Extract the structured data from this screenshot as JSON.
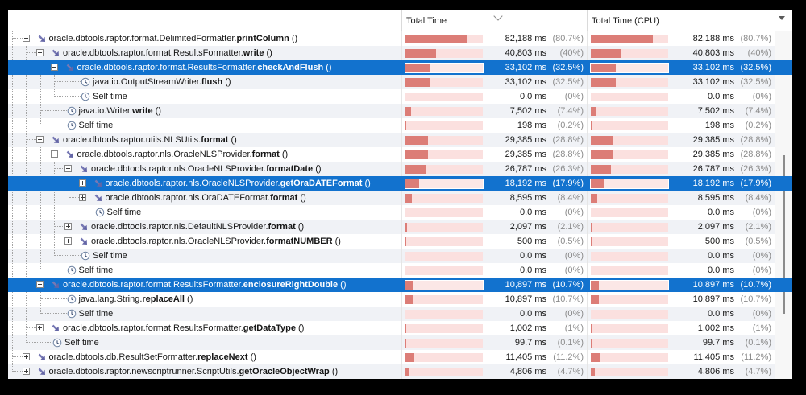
{
  "header": {
    "tree_column_label": "",
    "total_time_label": "Total Time",
    "total_time_cpu_label": "Total Time (CPU)",
    "sort_column": "Total Time",
    "sort_direction": "descending"
  },
  "colors": {
    "selection_blue": "#1272ce",
    "bar_fill": "#dc7d77",
    "bar_track": "#fbe0df",
    "alt_row": "#f0f2f6"
  },
  "rows": [
    {
      "prefix": "oracle.dbtools.raptor.format.DelimitedFormatter.",
      "method": "printColumn",
      "suffix": " ()",
      "level": 1,
      "node": "expanded",
      "icon": "method-call",
      "selected": false,
      "total": {
        "time": "82,188 ms",
        "pct": "(80.7%)",
        "value": 80.7
      },
      "cpu": {
        "time": "82,188 ms",
        "pct": "(80.7%)",
        "value": 80.7
      }
    },
    {
      "prefix": "oracle.dbtools.raptor.format.ResultsFormatter.",
      "method": "write",
      "suffix": " ()",
      "level": 2,
      "node": "expanded",
      "icon": "method-call",
      "selected": false,
      "total": {
        "time": "40,803 ms",
        "pct": "(40%)",
        "value": 40
      },
      "cpu": {
        "time": "40,803 ms",
        "pct": "(40%)",
        "value": 40
      }
    },
    {
      "prefix": "oracle.dbtools.raptor.format.ResultsFormatter.",
      "method": "checkAndFlush",
      "suffix": " ()",
      "level": 3,
      "node": "expanded",
      "icon": "method-call",
      "selected": true,
      "total": {
        "time": "33,102 ms",
        "pct": "(32.5%)",
        "value": 32.5
      },
      "cpu": {
        "time": "33,102 ms",
        "pct": "(32.5%)",
        "value": 32.5
      }
    },
    {
      "prefix": "java.io.OutputStreamWriter.",
      "method": "flush",
      "suffix": " ()",
      "level": 4,
      "node": "leaf",
      "icon": "clock",
      "selected": false,
      "total": {
        "time": "33,102 ms",
        "pct": "(32.5%)",
        "value": 32.5
      },
      "cpu": {
        "time": "33,102 ms",
        "pct": "(32.5%)",
        "value": 32.5
      }
    },
    {
      "prefix": "Self time",
      "method": "",
      "suffix": "",
      "level": 4,
      "node": "leaf",
      "icon": "clock",
      "selected": false,
      "total": {
        "time": "0.0 ms",
        "pct": "(0%)",
        "value": 0
      },
      "cpu": {
        "time": "0.0 ms",
        "pct": "(0%)",
        "value": 0
      }
    },
    {
      "prefix": "java.io.Writer.",
      "method": "write",
      "suffix": " ()",
      "level": 3,
      "node": "leaf",
      "icon": "clock",
      "selected": false,
      "total": {
        "time": "7,502 ms",
        "pct": "(7.4%)",
        "value": 7.4
      },
      "cpu": {
        "time": "7,502 ms",
        "pct": "(7.4%)",
        "value": 7.4
      }
    },
    {
      "prefix": "Self time",
      "method": "",
      "suffix": "",
      "level": 3,
      "node": "leaf",
      "icon": "clock",
      "selected": false,
      "total": {
        "time": "198 ms",
        "pct": "(0.2%)",
        "value": 0.2
      },
      "cpu": {
        "time": "198 ms",
        "pct": "(0.2%)",
        "value": 0.2
      }
    },
    {
      "prefix": "oracle.dbtools.raptor.utils.NLSUtils.",
      "method": "format",
      "suffix": " ()",
      "level": 2,
      "node": "expanded",
      "icon": "method-call",
      "selected": false,
      "total": {
        "time": "29,385 ms",
        "pct": "(28.8%)",
        "value": 28.8
      },
      "cpu": {
        "time": "29,385 ms",
        "pct": "(28.8%)",
        "value": 28.8
      }
    },
    {
      "prefix": "oracle.dbtools.raptor.nls.OracleNLSProvider.",
      "method": "format",
      "suffix": " ()",
      "level": 3,
      "node": "expanded",
      "icon": "method-call",
      "selected": false,
      "total": {
        "time": "29,385 ms",
        "pct": "(28.8%)",
        "value": 28.8
      },
      "cpu": {
        "time": "29,385 ms",
        "pct": "(28.8%)",
        "value": 28.8
      }
    },
    {
      "prefix": "oracle.dbtools.raptor.nls.OracleNLSProvider.",
      "method": "formatDate",
      "suffix": " ()",
      "level": 4,
      "node": "expanded",
      "icon": "method-call",
      "selected": false,
      "total": {
        "time": "26,787 ms",
        "pct": "(26.3%)",
        "value": 26.3
      },
      "cpu": {
        "time": "26,787 ms",
        "pct": "(26.3%)",
        "value": 26.3
      }
    },
    {
      "prefix": "oracle.dbtools.raptor.nls.OracleNLSProvider.",
      "method": "getOraDATEFormat",
      "suffix": " ()",
      "level": 5,
      "node": "collapsed",
      "icon": "method-call",
      "selected": true,
      "total": {
        "time": "18,192 ms",
        "pct": "(17.9%)",
        "value": 17.9
      },
      "cpu": {
        "time": "18,192 ms",
        "pct": "(17.9%)",
        "value": 17.9
      }
    },
    {
      "prefix": "oracle.dbtools.raptor.nls.OraDATEFormat.",
      "method": "format",
      "suffix": " ()",
      "level": 5,
      "node": "collapsed",
      "icon": "method-call",
      "selected": false,
      "total": {
        "time": "8,595 ms",
        "pct": "(8.4%)",
        "value": 8.4
      },
      "cpu": {
        "time": "8,595 ms",
        "pct": "(8.4%)",
        "value": 8.4
      }
    },
    {
      "prefix": "Self time",
      "method": "",
      "suffix": "",
      "level": 5,
      "node": "leaf",
      "icon": "clock",
      "selected": false,
      "total": {
        "time": "0.0 ms",
        "pct": "(0%)",
        "value": 0
      },
      "cpu": {
        "time": "0.0 ms",
        "pct": "(0%)",
        "value": 0
      }
    },
    {
      "prefix": "oracle.dbtools.raptor.nls.DefaultNLSProvider.",
      "method": "format",
      "suffix": " ()",
      "level": 4,
      "node": "collapsed",
      "icon": "method-call",
      "selected": false,
      "total": {
        "time": "2,097 ms",
        "pct": "(2.1%)",
        "value": 2.1
      },
      "cpu": {
        "time": "2,097 ms",
        "pct": "(2.1%)",
        "value": 2.1
      }
    },
    {
      "prefix": "oracle.dbtools.raptor.nls.OracleNLSProvider.",
      "method": "formatNUMBER",
      "suffix": " ()",
      "level": 4,
      "node": "collapsed",
      "icon": "method-call",
      "selected": false,
      "total": {
        "time": "500 ms",
        "pct": "(0.5%)",
        "value": 0.5
      },
      "cpu": {
        "time": "500 ms",
        "pct": "(0.5%)",
        "value": 0.5
      }
    },
    {
      "prefix": "Self time",
      "method": "",
      "suffix": "",
      "level": 4,
      "node": "leaf",
      "icon": "clock",
      "selected": false,
      "total": {
        "time": "0.0 ms",
        "pct": "(0%)",
        "value": 0
      },
      "cpu": {
        "time": "0.0 ms",
        "pct": "(0%)",
        "value": 0
      }
    },
    {
      "prefix": "Self time",
      "method": "",
      "suffix": "",
      "level": 3,
      "node": "leaf",
      "icon": "clock",
      "selected": false,
      "total": {
        "time": "0.0 ms",
        "pct": "(0%)",
        "value": 0
      },
      "cpu": {
        "time": "0.0 ms",
        "pct": "(0%)",
        "value": 0
      }
    },
    {
      "prefix": "oracle.dbtools.raptor.format.ResultsFormatter.",
      "method": "enclosureRightDouble",
      "suffix": " ()",
      "level": 2,
      "node": "expanded",
      "icon": "method-call",
      "selected": true,
      "total": {
        "time": "10,897 ms",
        "pct": "(10.7%)",
        "value": 10.7
      },
      "cpu": {
        "time": "10,897 ms",
        "pct": "(10.7%)",
        "value": 10.7
      }
    },
    {
      "prefix": "java.lang.String.",
      "method": "replaceAll",
      "suffix": " ()",
      "level": 3,
      "node": "leaf",
      "icon": "clock",
      "selected": false,
      "total": {
        "time": "10,897 ms",
        "pct": "(10.7%)",
        "value": 10.7
      },
      "cpu": {
        "time": "10,897 ms",
        "pct": "(10.7%)",
        "value": 10.7
      }
    },
    {
      "prefix": "Self time",
      "method": "",
      "suffix": "",
      "level": 3,
      "node": "leaf",
      "icon": "clock",
      "selected": false,
      "total": {
        "time": "0.0 ms",
        "pct": "(0%)",
        "value": 0
      },
      "cpu": {
        "time": "0.0 ms",
        "pct": "(0%)",
        "value": 0
      }
    },
    {
      "prefix": "oracle.dbtools.raptor.format.ResultsFormatter.",
      "method": "getDataType",
      "suffix": " ()",
      "level": 2,
      "node": "collapsed",
      "icon": "method-call",
      "selected": false,
      "total": {
        "time": "1,002 ms",
        "pct": "(1%)",
        "value": 1
      },
      "cpu": {
        "time": "1,002 ms",
        "pct": "(1%)",
        "value": 1
      }
    },
    {
      "prefix": "Self time",
      "method": "",
      "suffix": "",
      "level": 2,
      "node": "leaf",
      "icon": "clock",
      "selected": false,
      "total": {
        "time": "99.7 ms",
        "pct": "(0.1%)",
        "value": 0.1
      },
      "cpu": {
        "time": "99.7 ms",
        "pct": "(0.1%)",
        "value": 0.1
      }
    },
    {
      "prefix": "oracle.dbtools.db.ResultSetFormatter.",
      "method": "replaceNext",
      "suffix": " ()",
      "level": 1,
      "node": "collapsed",
      "icon": "method-call",
      "selected": false,
      "total": {
        "time": "11,405 ms",
        "pct": "(11.2%)",
        "value": 11.2
      },
      "cpu": {
        "time": "11,405 ms",
        "pct": "(11.2%)",
        "value": 11.2
      }
    },
    {
      "prefix": "oracle.dbtools.raptor.newscriptrunner.ScriptUtils.",
      "method": "getOracleObjectWrap",
      "suffix": " ()",
      "level": 1,
      "node": "collapsed",
      "icon": "method-call",
      "selected": false,
      "total": {
        "time": "4,806 ms",
        "pct": "(4.7%)",
        "value": 4.7
      },
      "cpu": {
        "time": "4,806 ms",
        "pct": "(4.7%)",
        "value": 4.7
      }
    }
  ]
}
